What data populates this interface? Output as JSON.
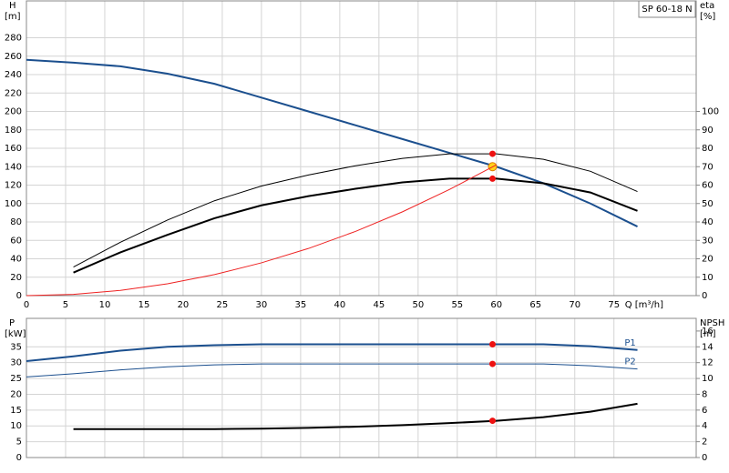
{
  "chart_data": [
    {
      "type": "line",
      "title": "SP 60-18 N",
      "xlabel": "Q [m³/h]",
      "ylabel": "H",
      "yunit": "[m]",
      "y2label": "eta",
      "y2unit": "[%]",
      "x": [
        0,
        6,
        12,
        18,
        24,
        30,
        36,
        42,
        48,
        54,
        60,
        66,
        72,
        78
      ],
      "xlim": [
        0,
        85.5
      ],
      "xticks": [
        0,
        5,
        10,
        15,
        20,
        25,
        30,
        35,
        40,
        45,
        50,
        55,
        60,
        65,
        70,
        75
      ],
      "ylim": [
        0,
        320
      ],
      "yticks": [
        0,
        20,
        40,
        60,
        80,
        100,
        120,
        140,
        160,
        180,
        200,
        220,
        240,
        260,
        280
      ],
      "y2lim": [
        0,
        160
      ],
      "y2ticks": [
        0,
        10,
        20,
        30,
        40,
        50,
        60,
        70,
        80,
        90,
        100
      ],
      "grid": true,
      "duty_x": 59.5,
      "series": [
        {
          "color": "#1b4f8e",
          "width": 2,
          "values": [
            256,
            253,
            249,
            241,
            230,
            215,
            200,
            185,
            170,
            155,
            140,
            122,
            100,
            75
          ],
          "duty": 140,
          "duty_color": "#ffd21a"
        },
        {
          "color": "#000000",
          "width": 2,
          "axis": "y2",
          "values": [
            null,
            12.5,
            23.5,
            33,
            42,
            49,
            54,
            58,
            61.5,
            63.5,
            63.5,
            61,
            56,
            46
          ],
          "duty": 63.5,
          "duty_color": "#ee1111"
        },
        {
          "color": "#000000",
          "width": 1,
          "axis": "y2",
          "values": [
            null,
            15.5,
            29,
            41,
            51.5,
            59.5,
            65.5,
            70.5,
            74.5,
            77,
            77,
            74,
            67.5,
            56.5
          ],
          "duty": 77,
          "duty_color": "#ee1111"
        },
        {
          "color": "#ee2222",
          "width": 1,
          "values": [
            0,
            1.4,
            5.7,
            12.8,
            22.8,
            35.6,
            51.2,
            69.7,
            91,
            115.2,
            142,
            null,
            null,
            null
          ]
        }
      ]
    },
    {
      "type": "line",
      "ylabel": "P",
      "yunit": "[kW]",
      "y2label": "NPSH",
      "y2unit": "[m]",
      "x": [
        0,
        6,
        12,
        18,
        24,
        30,
        36,
        42,
        48,
        54,
        60,
        66,
        72,
        78
      ],
      "xlim": [
        0,
        85.5
      ],
      "xticks": [
        0,
        5,
        10,
        15,
        20,
        25,
        30,
        35,
        40,
        45,
        50,
        55,
        60,
        65,
        70,
        75
      ],
      "ylim": [
        0,
        44
      ],
      "yticks": [
        0,
        5,
        10,
        15,
        20,
        25,
        30,
        35
      ],
      "y2lim": [
        0,
        17.6
      ],
      "y2ticks": [
        0,
        2,
        4,
        6,
        8,
        10,
        12,
        14,
        16
      ],
      "grid": true,
      "duty_x": 59.5,
      "series": [
        {
          "name": "P1",
          "color": "#1b4f8e",
          "width": 2,
          "values": [
            30.5,
            32,
            33.8,
            35,
            35.5,
            35.8,
            35.8,
            35.8,
            35.8,
            35.8,
            35.8,
            35.8,
            35.2,
            34
          ],
          "duty": 35.8,
          "duty_color": "#ee1111"
        },
        {
          "name": "P2",
          "color": "#1b4f8e",
          "width": 1,
          "values": [
            25.5,
            26.5,
            27.7,
            28.7,
            29.3,
            29.6,
            29.6,
            29.6,
            29.6,
            29.6,
            29.6,
            29.6,
            29,
            28
          ],
          "duty": 29.6,
          "duty_color": "#ee1111"
        },
        {
          "color": "#000000",
          "width": 2,
          "axis": "y2",
          "values": [
            null,
            3.6,
            3.6,
            3.6,
            3.6,
            3.65,
            3.75,
            3.9,
            4.1,
            4.35,
            4.65,
            5.1,
            5.8,
            6.8
          ],
          "duty": 4.65,
          "duty_color": "#ee1111"
        }
      ]
    }
  ]
}
